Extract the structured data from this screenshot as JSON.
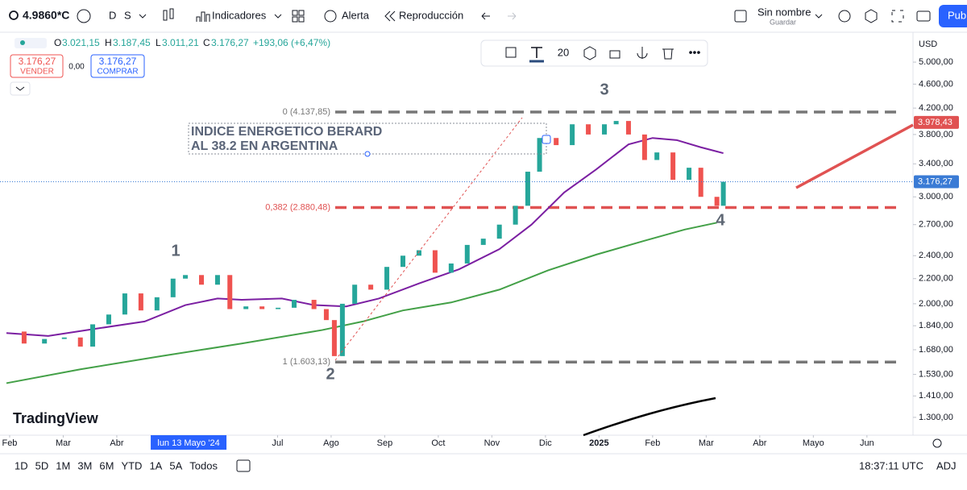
{
  "toolbar": {
    "symbol": "4.9860*C",
    "interval": "D",
    "style": "S",
    "indicators": "Indicadores",
    "alert": "Alerta",
    "replay": "Reproducción",
    "layout_name": "Sin nombre",
    "layout_save": "Guardar",
    "publish": "Publ"
  },
  "legend": {
    "o_key": "O",
    "o": "3.021,15",
    "h_key": "H",
    "h": "3.187,45",
    "l_key": "L",
    "l": "3.011,21",
    "c_key": "C",
    "c": "3.176,27",
    "change": "+193,06 (+6,47%)",
    "sell_price": "3.176,27",
    "sell": "VENDER",
    "spread": "0,00",
    "buy_price": "3.176,27",
    "buy": "COMPRAR"
  },
  "drawing_toolbar": {
    "font_size": "20"
  },
  "chart_data": {
    "type": "candlestick",
    "currency": "USD",
    "log_scale": true,
    "annotation": [
      "INDICE ENERGETICO BERARD",
      "AL 38.2 EN ARGENTINA"
    ],
    "wave_labels": [
      "1",
      "2",
      "3",
      "4"
    ],
    "xlim": [
      0.82,
      17.86
    ],
    "ylim": [
      1215,
      5600
    ],
    "xticks": [
      {
        "value": 1,
        "label": "Feb"
      },
      {
        "value": 2,
        "label": "Mar"
      },
      {
        "value": 3,
        "label": "Abr"
      },
      {
        "value": 6,
        "label": "Jul"
      },
      {
        "value": 7,
        "label": "Ago"
      },
      {
        "value": 8,
        "label": "Sep"
      },
      {
        "value": 9,
        "label": "Oct"
      },
      {
        "value": 10,
        "label": "Nov"
      },
      {
        "value": 11,
        "label": "Dic"
      },
      {
        "value": 12,
        "label": "2025"
      },
      {
        "value": 13,
        "label": "Feb"
      },
      {
        "value": 14,
        "label": "Mar"
      },
      {
        "value": 15,
        "label": "Abr"
      },
      {
        "value": 16,
        "label": "Mayo"
      },
      {
        "value": 17,
        "label": "Jun"
      }
    ],
    "crosshair_label": {
      "value": 4.34,
      "label": "lun 13 Mayo '24"
    },
    "yticks": [
      {
        "value": 5000,
        "label": "5.000,00"
      },
      {
        "value": 4600,
        "label": "4.600,00"
      },
      {
        "value": 4200,
        "label": "4.200,00"
      },
      {
        "value": 3800,
        "label": "3.800,00"
      },
      {
        "value": 3400,
        "label": "3.400,00"
      },
      {
        "value": 3000,
        "label": "3.000,00"
      },
      {
        "value": 2700,
        "label": "2.700,00"
      },
      {
        "value": 2400,
        "label": "2.400,00"
      },
      {
        "value": 2200,
        "label": "2.200,00"
      },
      {
        "value": 2000,
        "label": "2.000,00"
      },
      {
        "value": 1840,
        "label": "1.840,00"
      },
      {
        "value": 1680,
        "label": "1.680,00"
      },
      {
        "value": 1530,
        "label": "1.530,00"
      },
      {
        "value": 1410,
        "label": "1.410,00"
      },
      {
        "value": 1300,
        "label": "1.300,00"
      }
    ],
    "price_tags": [
      {
        "value": 3978.43,
        "label": "3.978,43",
        "color": "#e05252"
      },
      {
        "value": 3176.27,
        "label": "3.176,27",
        "color": "#3a7bd5"
      }
    ],
    "fib_levels": [
      {
        "value": 4137.85,
        "label": "0 (4.137,85)",
        "color": "#777777"
      },
      {
        "value": 2880.48,
        "label": "0,382 (2.880,48)",
        "color": "#e05252"
      },
      {
        "value": 1603.13,
        "label": "1 (1.603,13)",
        "color": "#777777"
      }
    ],
    "x": [
      0.94,
      1.27,
      1.65,
      2.02,
      2.32,
      2.55,
      2.85,
      3.15,
      3.45,
      3.75,
      4.05,
      4.28,
      4.58,
      4.88,
      5.11,
      5.41,
      5.71,
      6.01,
      6.31,
      6.68,
      6.91,
      7.06,
      7.21,
      7.44,
      7.74,
      8.04,
      8.34,
      8.64,
      8.94,
      9.24,
      9.54,
      9.84,
      10.14,
      10.44,
      10.67,
      10.89,
      11.2,
      11.5,
      11.8,
      12.1,
      12.32,
      12.55,
      12.85,
      13.08,
      13.38,
      13.68,
      13.9,
      14.2,
      14.32
    ],
    "close": [
      1800,
      1720,
      1750,
      1760,
      1700,
      1850,
      1920,
      2080,
      1950,
      2050,
      2200,
      2230,
      2150,
      2230,
      1960,
      1980,
      1960,
      1970,
      2030,
      1960,
      1880,
      1640,
      2000,
      2150,
      2110,
      2300,
      2400,
      2450,
      2250,
      2330,
      2500,
      2560,
      2700,
      2900,
      3300,
      3750,
      3650,
      3950,
      3800,
      3950,
      4000,
      3800,
      3450,
      3550,
      3200,
      3350,
      3000,
      2900,
      3176.27
    ],
    "up_color": "#26a69a",
    "down_color": "#ef5350",
    "moving_averages": [
      {
        "color": "#7b1fa2",
        "x": [
          0.94,
          1.72,
          2.62,
          3.52,
          4.28,
          4.88,
          5.33,
          6.08,
          6.68,
          7.28,
          7.89,
          8.64,
          9.39,
          10.14,
          10.74,
          11.35,
          11.95,
          12.55,
          13.0,
          13.45,
          13.9,
          14.32
        ],
        "values": [
          1790,
          1770,
          1820,
          1870,
          1990,
          2040,
          2030,
          2040,
          1990,
          1980,
          2040,
          2160,
          2280,
          2460,
          2700,
          3050,
          3330,
          3660,
          3750,
          3720,
          3620,
          3540
        ]
      },
      {
        "color": "#43a047",
        "x": [
          0.94,
          2.32,
          3.83,
          5.33,
          6.83,
          7.59,
          8.34,
          9.24,
          10.14,
          11.05,
          11.95,
          12.85,
          13.6,
          14.2
        ],
        "values": [
          1480,
          1560,
          1640,
          1720,
          1810,
          1870,
          1950,
          2010,
          2110,
          2270,
          2410,
          2540,
          2650,
          2720
        ]
      }
    ]
  },
  "bottom_bar": {
    "ranges": [
      "1D",
      "5D",
      "1M",
      "3M",
      "6M",
      "YTD",
      "1A",
      "5A",
      "Todos"
    ],
    "clock": "18:37:11 UTC",
    "adj": "ADJ"
  },
  "brand": "TradingView"
}
